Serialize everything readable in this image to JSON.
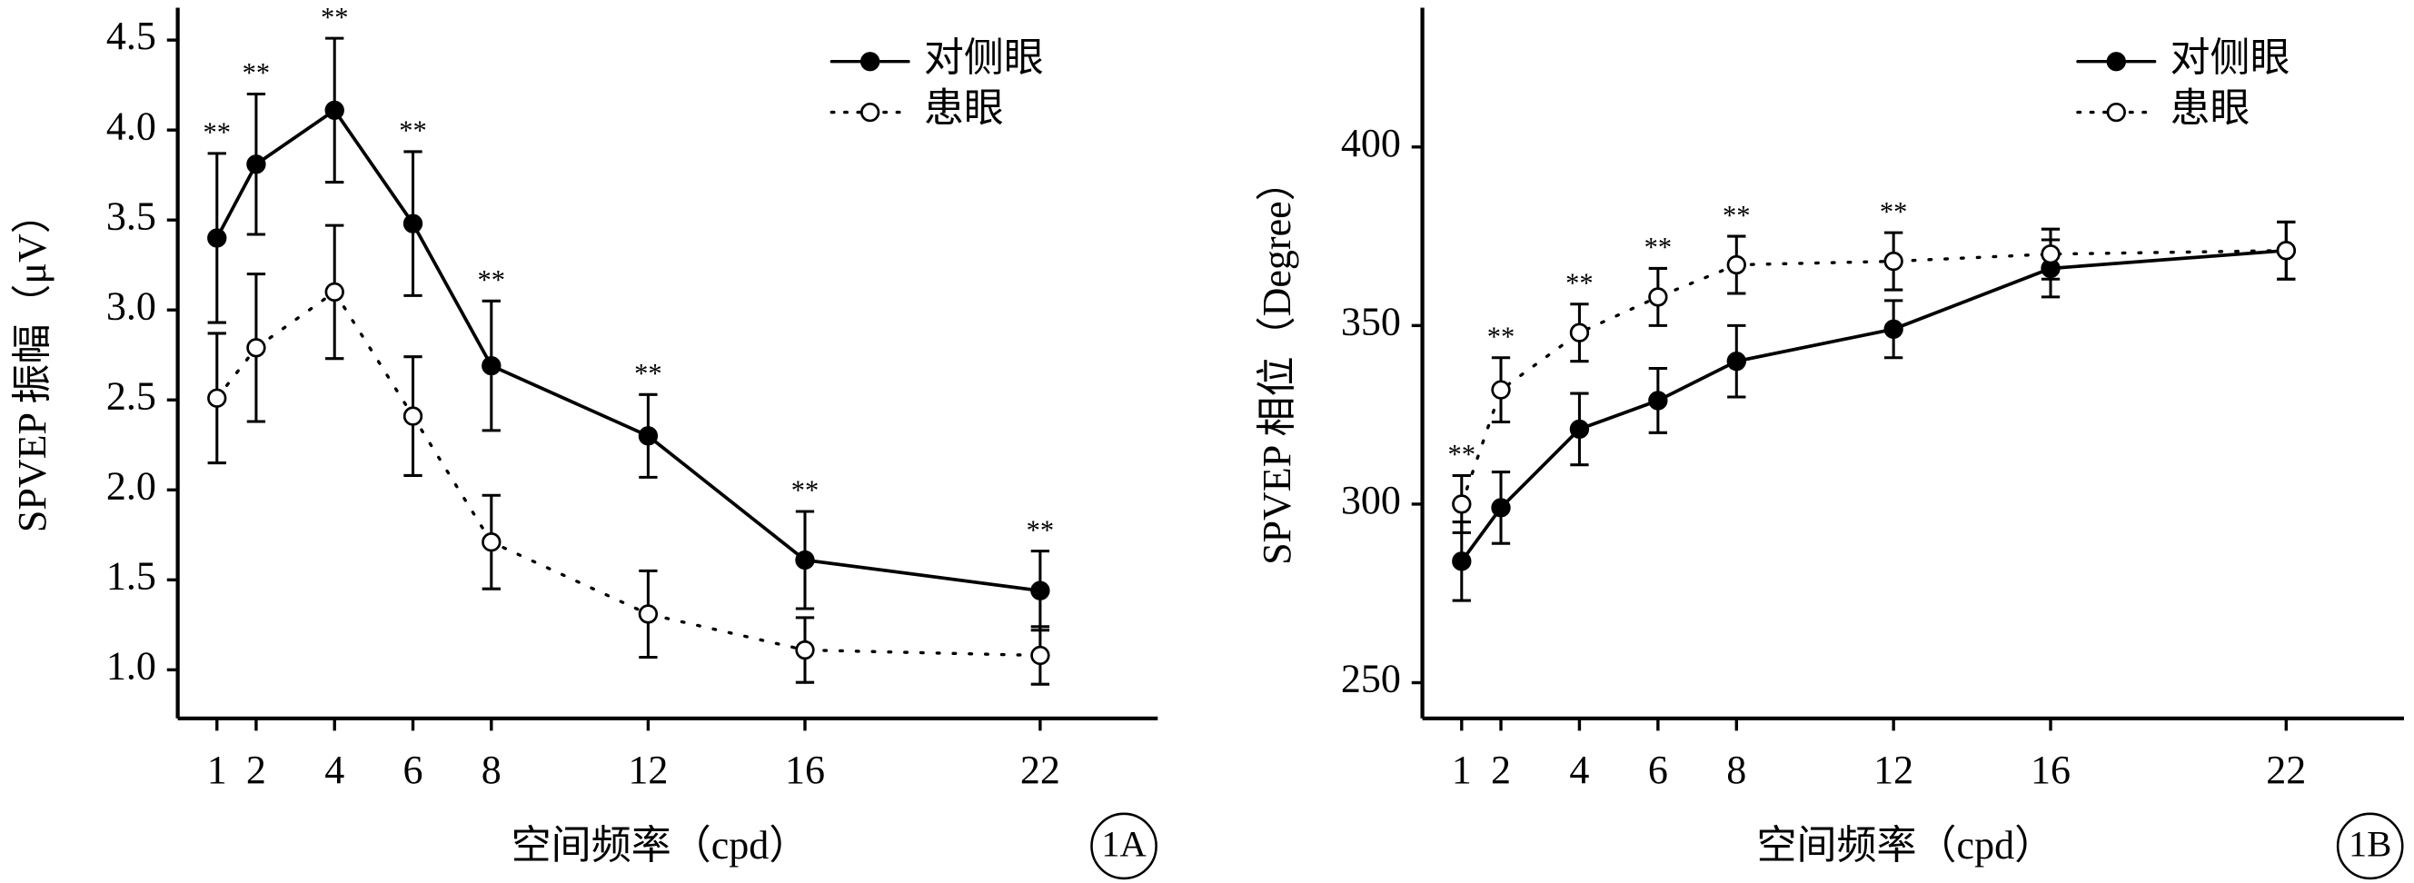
{
  "chart_data": [
    {
      "type": "line",
      "panel_label": "1A",
      "ylabel": "SPVEP 振幅（μV）",
      "xlabel": "空间频率（cpd）",
      "x": [
        1,
        2,
        4,
        6,
        8,
        12,
        16,
        22
      ],
      "xlim": [
        0,
        25
      ],
      "xticks": [
        1,
        2,
        4,
        6,
        8,
        12,
        16,
        22
      ],
      "ylim": [
        0.73,
        4.68
      ],
      "yticks": [
        {
          "value": 1,
          "label": "1.0"
        },
        1.5,
        {
          "value": 2,
          "label": "2.0"
        },
        2.5,
        {
          "value": 3,
          "label": "3.0"
        },
        3.5,
        {
          "value": 4,
          "label": "4.0"
        },
        4.5
      ],
      "legend": "upper right",
      "sig_labels": [
        "**",
        "**",
        "**",
        "**",
        "**",
        "**",
        "**",
        "**"
      ],
      "series": [
        {
          "name": "对侧眼",
          "color": "#000000",
          "line_style": "solid",
          "marker": "filled",
          "values": [
            3.4,
            3.81,
            4.11,
            3.48,
            2.69,
            2.3,
            1.61,
            1.44
          ],
          "errors": [
            0.47,
            0.39,
            0.4,
            0.4,
            0.36,
            0.23,
            0.27,
            0.22
          ]
        },
        {
          "name": "患眼",
          "color": "#000000",
          "line_style": "dotted",
          "marker": "open",
          "values": [
            2.51,
            2.79,
            3.1,
            2.41,
            1.71,
            1.31,
            1.11,
            1.08
          ],
          "errors": [
            0.36,
            0.41,
            0.37,
            0.33,
            0.26,
            0.24,
            0.18,
            0.16
          ]
        }
      ]
    },
    {
      "type": "line",
      "panel_label": "1B",
      "ylabel": "SPVEP 相位（Degree）",
      "xlabel": "空间频率（cpd）",
      "x": [
        1,
        2,
        4,
        6,
        8,
        12,
        16,
        22
      ],
      "xlim": [
        0,
        25
      ],
      "xticks": [
        1,
        2,
        4,
        6,
        8,
        12,
        16,
        22
      ],
      "ylim": [
        240,
        439
      ],
      "yticks": [
        250,
        300,
        350,
        400
      ],
      "legend": "upper right",
      "sig_labels": [
        "**",
        "**",
        "**",
        "**",
        "**",
        "**",
        null,
        null
      ],
      "series": [
        {
          "name": "对侧眼",
          "color": "#000000",
          "line_style": "solid",
          "marker": "filled",
          "values": [
            284,
            299,
            321,
            329,
            340,
            349,
            366,
            371
          ],
          "errors": [
            11,
            10,
            10,
            9,
            10,
            8,
            8,
            8
          ]
        },
        {
          "name": "患眼",
          "color": "#000000",
          "line_style": "dotted",
          "marker": "open",
          "values": [
            300,
            332,
            348,
            358,
            367,
            368,
            370,
            371
          ],
          "errors": [
            8,
            9,
            8,
            8,
            8,
            8,
            7,
            8
          ]
        }
      ]
    }
  ]
}
